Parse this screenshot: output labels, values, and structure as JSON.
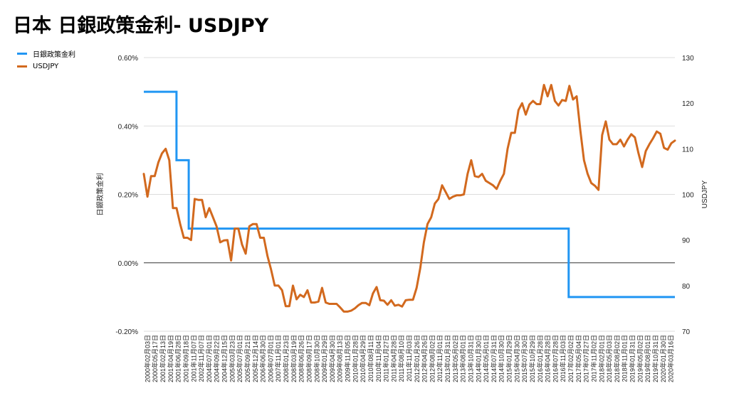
{
  "title": "日本 日銀政策金利- USDJPY",
  "colors": {
    "boj": "#2196f3",
    "usdjpy": "#d2691e",
    "grid": "#dddddd",
    "zero": "#333333"
  },
  "chart_data": {
    "type": "line",
    "title": "日本 日銀政策金利- USDJPY",
    "legend_position": "top-left",
    "grid": true,
    "ylabel_left": "日銀政策金利",
    "ylabel_right": "USDJPY",
    "y_left_ticks": [
      "0.60%",
      "0.40%",
      "0.20%",
      "0.00%",
      "-0.20%"
    ],
    "y_right_ticks": [
      "130",
      "120",
      "110",
      "100",
      "90",
      "80",
      "70"
    ],
    "ylim_left": [
      -0.2,
      0.6
    ],
    "ylim_right": [
      70,
      130
    ],
    "x_ticks": [
      "2000年02月03日",
      "2000年05月17日",
      "2001年02月13日",
      "2001年04月19日",
      "2001年06月28日",
      "2001年09月18日",
      "2001年11月07日",
      "2002年11月07日",
      "2004年07月01日",
      "2004年09月22日",
      "2004年12月15日",
      "2005年03月23日",
      "2005年07月01日",
      "2005年09月21日",
      "2005年12月14日",
      "2006年06月30日",
      "2006年07月01日",
      "2007年11月01日",
      "2008年01月23日",
      "2008年03月19日",
      "2008年06月26日",
      "2008年09月17日",
      "2008年10月30日",
      "2009年01月29日",
      "2009年04月30日",
      "2009年08月13日",
      "2009年11月05日",
      "2010年01月28日",
      "2010年04月29日",
      "2010年08月11日",
      "2010年11月04日",
      "2011年01月27日",
      "2011年04月28日",
      "2011年08月10日",
      "2011年11月03日",
      "2012年01月26日",
      "2012年04月26日",
      "2012年08月02日",
      "2012年11月01日",
      "2013年01月31日",
      "2013年05月02日",
      "2013年08月01日",
      "2013年10月31日",
      "2014年01月30日",
      "2014年05月01日",
      "2014年07月31日",
      "2014年10月30日",
      "2015年01月29日",
      "2015年04月30日",
      "2015年07月30日",
      "2015年10月29日",
      "2016年01月28日",
      "2016年04月28日",
      "2016年07月28日",
      "2016年11月03日",
      "2017年02月02日",
      "2017年05月04日",
      "2017年07月27日",
      "2017年11月02日",
      "2018年02月01日",
      "2018年05月03日",
      "2018年08月02日",
      "2018年11月01日",
      "2019年01月31日",
      "2019年05月02日",
      "2019年08月01日",
      "2019年10月31日",
      "2020年01月30日",
      "2020年03月16日"
    ],
    "series": [
      {
        "name": "日銀政策金利",
        "axis": "left",
        "step": true,
        "points": [
          [
            0,
            0.5
          ],
          [
            16,
            0.5
          ],
          [
            16,
            0.3
          ],
          [
            22,
            0.3
          ],
          [
            22,
            0.1
          ],
          [
            208,
            0.1
          ],
          [
            208,
            -0.1
          ],
          [
            260,
            -0.1
          ]
        ]
      },
      {
        "name": "USDJPY",
        "axis": "right",
        "values": [
          104.5,
          99.5,
          104,
          104,
          107,
          109,
          110,
          107.5,
          97,
          97,
          93.5,
          90.5,
          90.5,
          90,
          99,
          98.8,
          98.8,
          95,
          97,
          95,
          93,
          89.5,
          89.9,
          90,
          85.5,
          92.5,
          92.5,
          89,
          87,
          93,
          93.5,
          93.5,
          90.5,
          90.5,
          86.5,
          83.5,
          80,
          80,
          79,
          75.5,
          75.5,
          80,
          77,
          78,
          77.5,
          79,
          76.3,
          76.3,
          76.5,
          79.5,
          76.3,
          76,
          76,
          76,
          75.2,
          74.3,
          74.3,
          74.5,
          75,
          75.7,
          76.2,
          76.2,
          75.7,
          78.3,
          79.7,
          76.8,
          76.7,
          75.8,
          76.8,
          75.6,
          75.8,
          75.4,
          76.8,
          76.9,
          76.9,
          79.5,
          83.8,
          89.5,
          93.5,
          95,
          98,
          99,
          102,
          100.5,
          99,
          99.5,
          99.8,
          99.8,
          100,
          104.5,
          107.5,
          104,
          103.8,
          104.5,
          103,
          102.5,
          102,
          101.2,
          103,
          104.5,
          110,
          113.5,
          113.5,
          118.5,
          120,
          117.5,
          119.7,
          120.5,
          119.8,
          119.8,
          124,
          121.5,
          124,
          120.5,
          119.5,
          120.7,
          120.5,
          123.8,
          120.8,
          121.5,
          114,
          107.5,
          104.5,
          102.5,
          101.9,
          101,
          113,
          116,
          112,
          111,
          111,
          112,
          110.5,
          112,
          113.2,
          112.5,
          109,
          106,
          109.5,
          111,
          112.3,
          113.8,
          113.3,
          110.2,
          109.8,
          111.2,
          111.8
        ]
      }
    ]
  }
}
